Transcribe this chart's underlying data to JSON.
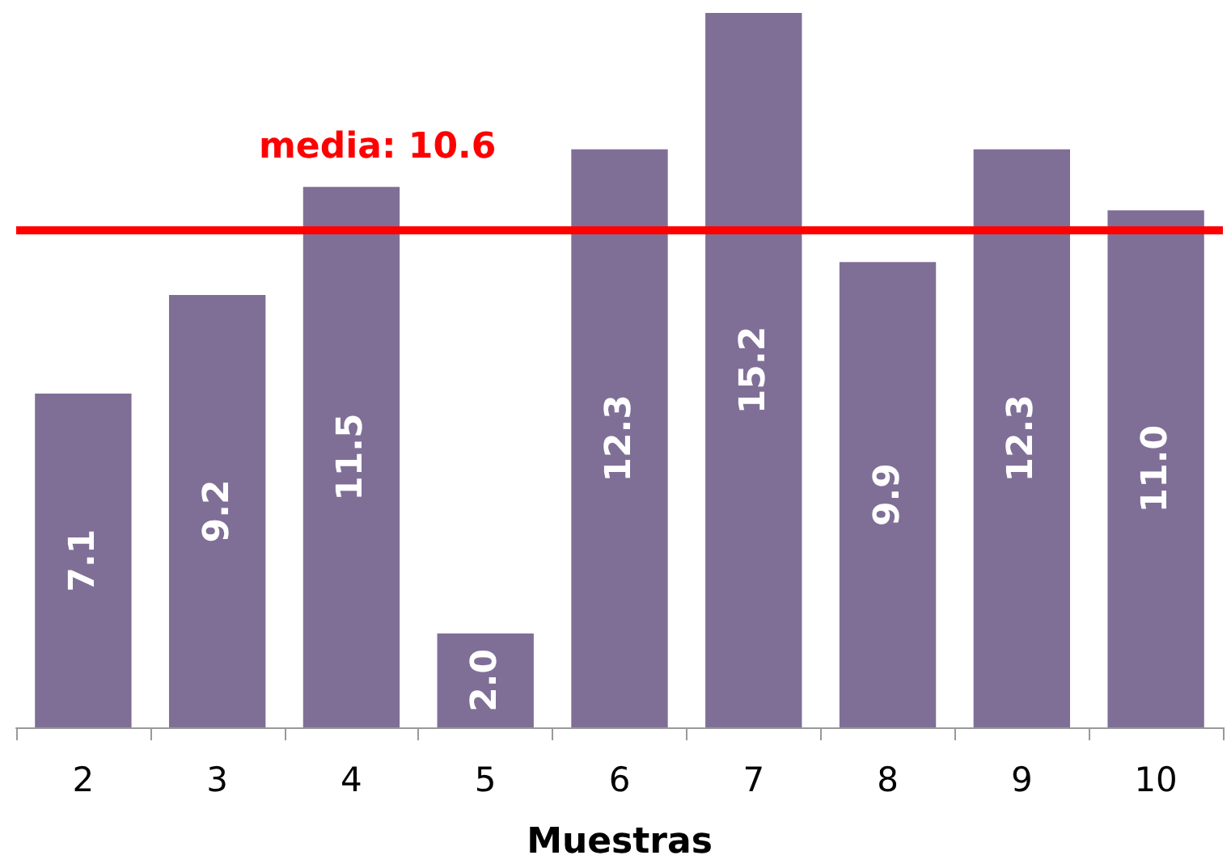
{
  "chart_data": {
    "type": "bar",
    "xlabel": "Muestras",
    "categories": [
      "2",
      "3",
      "4",
      "5",
      "6",
      "7",
      "8",
      "9",
      "10"
    ],
    "values": [
      7.1,
      9.2,
      11.5,
      2.0,
      12.3,
      15.2,
      9.9,
      12.3,
      11.0
    ],
    "value_labels": [
      "7.1",
      "9.2",
      "11.5",
      "2.0",
      "12.3",
      "15.2",
      "9.9",
      "12.3",
      "11.0"
    ],
    "color": "#7f6f97",
    "ylim": [
      0,
      15.2
    ],
    "tick_labels": "x",
    "grid": false,
    "ref_lines": [
      {
        "axis": "y",
        "value": 10.6,
        "label": "media: 10.6",
        "color": "#ff0000"
      }
    ]
  }
}
